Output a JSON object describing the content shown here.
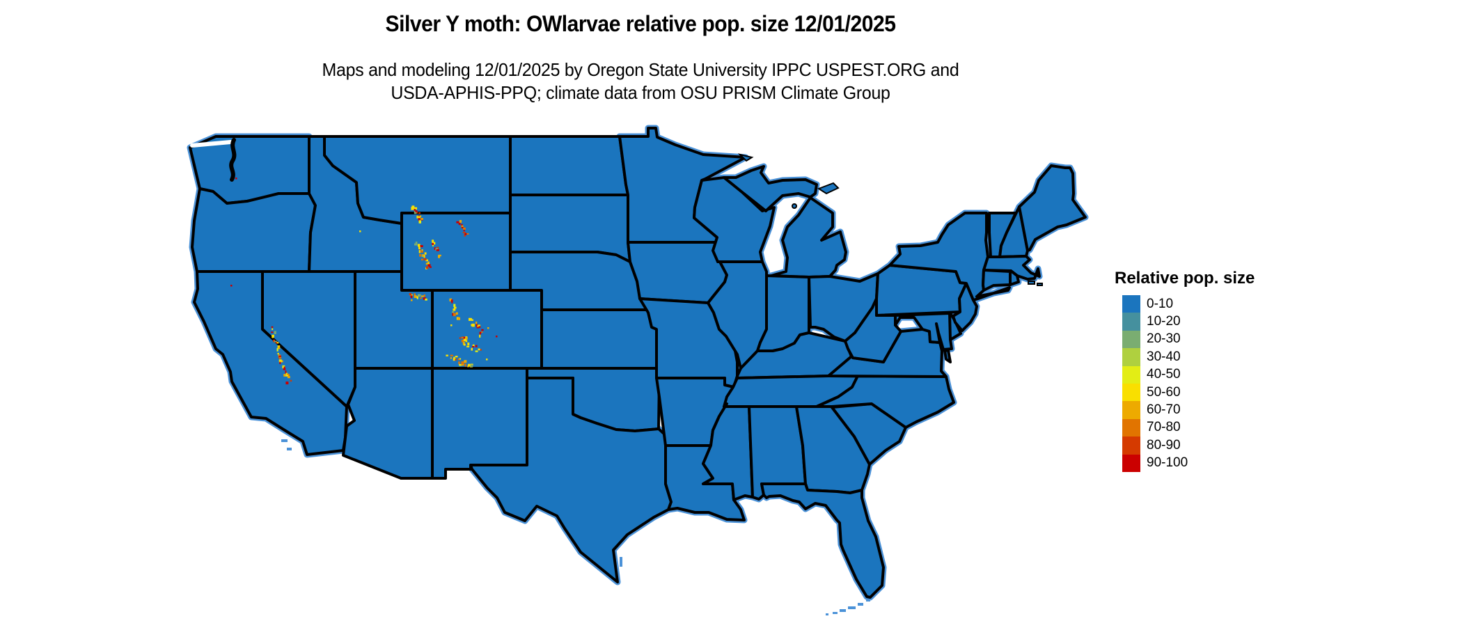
{
  "title": "Silver Y moth: OWlarvae relative pop. size 12/01/2025",
  "subtitle": {
    "line1": "Maps and modeling 12/01/2025 by Oregon State University IPPC USPEST.ORG and",
    "line2": "USDA-APHIS-PPQ; climate data from OSU PRISM Climate Group"
  },
  "legend": {
    "title": "Relative pop. size",
    "items": [
      {
        "label": "0-10",
        "color": "#1B75BE"
      },
      {
        "label": "10-20",
        "color": "#45909E"
      },
      {
        "label": "20-30",
        "color": "#7AAD71"
      },
      {
        "label": "30-40",
        "color": "#AFD03F"
      },
      {
        "label": "40-50",
        "color": "#E3ED15"
      },
      {
        "label": "50-60",
        "color": "#F9DF00"
      },
      {
        "label": "60-70",
        "color": "#EDAA00"
      },
      {
        "label": "70-80",
        "color": "#E17400"
      },
      {
        "label": "80-90",
        "color": "#D53A00"
      },
      {
        "label": "90-100",
        "color": "#CB0000"
      }
    ]
  },
  "map": {
    "land_color": "#1B75BE",
    "border_color": "#000000",
    "coast_fringe_color": "#4B92D8",
    "background_color": "#FFFFFF",
    "hotspot_palette": [
      [
        "#F9DF00",
        0.28
      ],
      [
        "#EDAA00",
        0.17
      ],
      [
        "#E17400",
        0.12
      ],
      [
        "#D53A00",
        0.1
      ],
      [
        "#CB0000",
        0.2
      ],
      [
        "#E3ED15",
        0.08
      ],
      [
        "#7AAD71",
        0.05
      ]
    ],
    "hotspot_clusters": [
      {
        "name": "absaroka-beartooth",
        "from": [
          593,
          296
        ],
        "to": [
          604,
          316
        ],
        "count": 16,
        "spread": 3
      },
      {
        "name": "wind-river",
        "from": [
          598,
          348
        ],
        "to": [
          616,
          384
        ],
        "count": 24,
        "spread": 4
      },
      {
        "name": "wind-river-east",
        "from": [
          620,
          345
        ],
        "to": [
          628,
          365
        ],
        "count": 10,
        "spread": 3
      },
      {
        "name": "bighorn",
        "from": [
          657,
          318
        ],
        "to": [
          668,
          337
        ],
        "count": 12,
        "spread": 3
      },
      {
        "name": "uinta",
        "from": [
          586,
          423
        ],
        "to": [
          612,
          426
        ],
        "count": 14,
        "spread": 3
      },
      {
        "name": "front-range",
        "from": [
          646,
          430
        ],
        "to": [
          656,
          456
        ],
        "count": 12,
        "spread": 3
      },
      {
        "name": "gore-range",
        "from": [
          676,
          457
        ],
        "to": [
          692,
          478
        ],
        "count": 14,
        "spread": 4
      },
      {
        "name": "sawatch",
        "from": [
          658,
          480
        ],
        "to": [
          685,
          505
        ],
        "count": 20,
        "spread": 5
      },
      {
        "name": "san-juan",
        "from": [
          645,
          510
        ],
        "to": [
          680,
          527
        ],
        "count": 22,
        "spread": 5
      },
      {
        "name": "sierra-north",
        "from": [
          390,
          470
        ],
        "to": [
          400,
          510
        ],
        "count": 16,
        "spread": 3
      },
      {
        "name": "sierra-south",
        "from": [
          400,
          510
        ],
        "to": [
          414,
          548
        ],
        "count": 16,
        "spread": 3
      }
    ],
    "hotspot_dots": [
      [
        338,
        255,
        "#CB0000"
      ],
      [
        331,
        409,
        "#CB0000"
      ],
      [
        516,
        331,
        "#F9DF00"
      ],
      [
        712,
        482,
        "#CB0000"
      ],
      [
        700,
        470,
        "#EDAA00"
      ],
      [
        647,
        466,
        "#F9DF00"
      ],
      [
        698,
        515,
        "#F9DF00"
      ],
      [
        590,
        430,
        "#EDAA00"
      ]
    ]
  }
}
